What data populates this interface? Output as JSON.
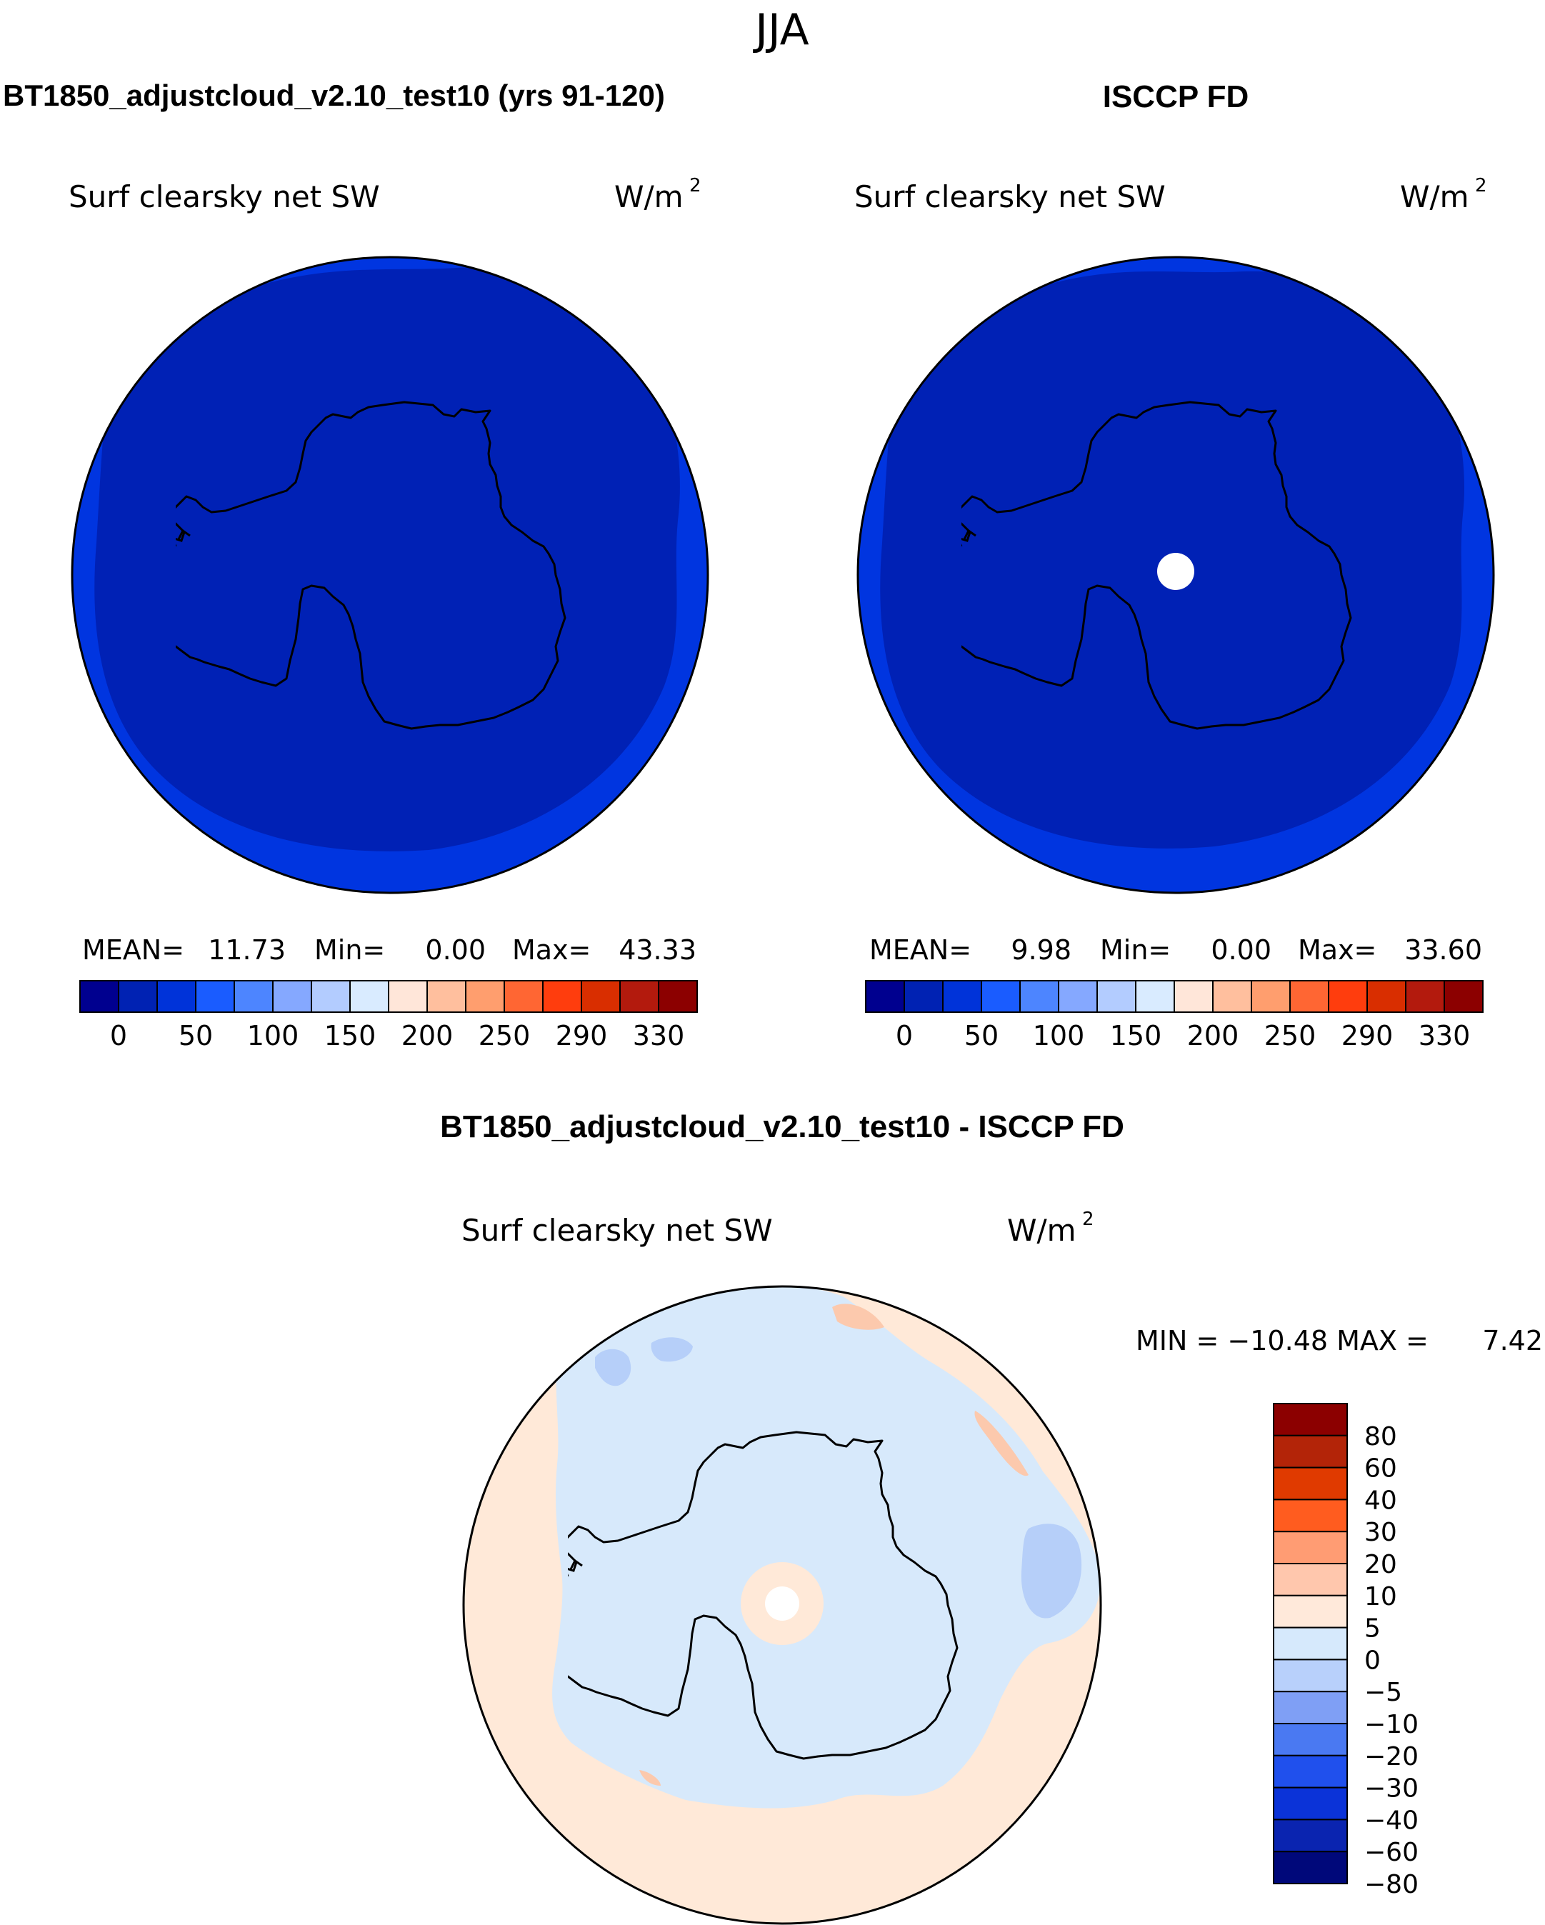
{
  "page": {
    "season": "JJA",
    "top_left_title": "BT1850_adjustcloud_v2.10_test10 (yrs 91-120)",
    "top_right_title": "ISCCP FD",
    "bottom_title": "BT1850_adjustcloud_v2.10_test10 - ISCCP FD"
  },
  "panels": {
    "model": {
      "variable": "Surf clearsky net SW",
      "units_base": "W/m",
      "units_exp": "2",
      "mean_label": "MEAN=",
      "mean": "11.73",
      "min_label": "Min=",
      "min": "0.00",
      "max_label": "Max=",
      "max": "43.33"
    },
    "obs": {
      "variable": "Surf clearsky net SW",
      "units_base": "W/m",
      "units_exp": "2",
      "mean_label": "MEAN=",
      "mean": "9.98",
      "min_label": "Min=",
      "min": "0.00",
      "max_label": "Max=",
      "max": "33.60"
    },
    "diff": {
      "variable": "Surf clearsky net SW",
      "units_base": "W/m",
      "units_exp": "2",
      "minmax_text": "MIN = −10.48 MAX =",
      "max_value": "7.42"
    }
  },
  "colorbars": {
    "abs_colors": [
      "#00008f",
      "#0022b3",
      "#0033d9",
      "#1a5cff",
      "#4d85ff",
      "#85a8ff",
      "#b3ccff",
      "#d9ebff",
      "#ffe6d9",
      "#ffbf9e",
      "#ff9e6e",
      "#ff6633",
      "#ff3d0d",
      "#d92e00",
      "#b31a0d",
      "#8c0000"
    ],
    "abs_labels": [
      "0",
      "50",
      "100",
      "150",
      "200",
      "250",
      "290",
      "330"
    ],
    "diff_colors_top_down": [
      "#8c0000",
      "#b32408",
      "#e03a00",
      "#ff5c1f",
      "#ff9c73",
      "#ffc7ad",
      "#ffe9da",
      "#d6e9fc",
      "#b8d0fb",
      "#7f9ff5",
      "#4a79f2",
      "#2050ed",
      "#0b33d8",
      "#0a24b0",
      "#00087a"
    ],
    "diff_labels": [
      "80",
      "60",
      "40",
      "30",
      "20",
      "10",
      "5",
      "0",
      "−5",
      "−10",
      "−20",
      "−30",
      "−40",
      "−60",
      "−80"
    ]
  },
  "chart_data": {
    "type": "heatmap",
    "projection": "south polar stereographic",
    "season": "JJA",
    "maps": [
      {
        "name": "BT1850_adjustcloud_v2.10_test10 (yrs 91-120)",
        "variable": "Surf clearsky net SW",
        "units": "W/m2",
        "mean": 11.73,
        "min": 0.0,
        "max": 43.33,
        "levels": [
          0,
          50,
          100,
          150,
          200,
          250,
          290,
          330
        ]
      },
      {
        "name": "ISCCP FD",
        "variable": "Surf clearsky net SW",
        "units": "W/m2",
        "mean": 9.98,
        "min": 0.0,
        "max": 33.6,
        "levels": [
          0,
          50,
          100,
          150,
          200,
          250,
          290,
          330
        ]
      },
      {
        "name": "BT1850_adjustcloud_v2.10_test10 - ISCCP FD",
        "variable": "Surf clearsky net SW",
        "units": "W/m2",
        "min": -10.48,
        "max": 7.42,
        "levels": [
          -80,
          -60,
          -40,
          -30,
          -20,
          -10,
          -5,
          0,
          5,
          10,
          20,
          30,
          40,
          60,
          80
        ]
      }
    ]
  },
  "colors": {
    "deep_navy": "#0021b5",
    "ring_blue": "#0035e0",
    "diff_neg": "#d7e9fb",
    "diff_pos": "#ffe9d8"
  }
}
